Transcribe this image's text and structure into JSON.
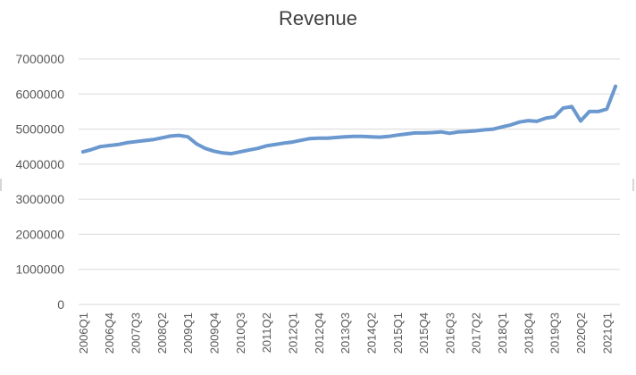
{
  "chart_data": {
    "type": "line",
    "title": "Revenue",
    "xlabel": "",
    "ylabel": "",
    "ylim": [
      0,
      7000000
    ],
    "yticks": [
      "0",
      "1000000",
      "2000000",
      "3000000",
      "4000000",
      "5000000",
      "6000000",
      "7000000"
    ],
    "grid": "horizontal",
    "legend": "none",
    "line_color": "#6a98cf",
    "categories": [
      "2006Q1",
      "2006Q2",
      "2006Q3",
      "2006Q4",
      "2007Q1",
      "2007Q2",
      "2007Q3",
      "2007Q4",
      "2008Q1",
      "2008Q2",
      "2008Q3",
      "2008Q4",
      "2009Q1",
      "2009Q2",
      "2009Q3",
      "2009Q4",
      "2010Q1",
      "2010Q2",
      "2010Q3",
      "2010Q4",
      "2011Q1",
      "2011Q2",
      "2011Q3",
      "2011Q4",
      "2012Q1",
      "2012Q2",
      "2012Q3",
      "2012Q4",
      "2013Q1",
      "2013Q2",
      "2013Q3",
      "2013Q4",
      "2014Q1",
      "2014Q2",
      "2014Q3",
      "2014Q4",
      "2015Q1",
      "2015Q2",
      "2015Q3",
      "2015Q4",
      "2016Q1",
      "2016Q2",
      "2016Q3",
      "2016Q4",
      "2017Q1",
      "2017Q2",
      "2017Q3",
      "2017Q4",
      "2018Q1",
      "2018Q2",
      "2018Q3",
      "2018Q4",
      "2019Q1",
      "2019Q2",
      "2019Q3",
      "2019Q4",
      "2020Q1",
      "2020Q2",
      "2020Q3",
      "2020Q4",
      "2021Q1",
      "2021Q2"
    ],
    "tick_labels": [
      "2006Q1",
      "2006Q4",
      "2007Q3",
      "2008Q2",
      "2009Q1",
      "2009Q4",
      "2010Q3",
      "2011Q2",
      "2012Q1",
      "2012Q4",
      "2013Q3",
      "2014Q2",
      "2015Q1",
      "2015Q4",
      "2016Q3",
      "2017Q2",
      "2018Q1",
      "2018Q4",
      "2019Q3",
      "2020Q2",
      "2021Q1"
    ],
    "series": [
      {
        "values": [
          4350000,
          4420000,
          4500000,
          4530000,
          4560000,
          4610000,
          4640000,
          4670000,
          4700000,
          4750000,
          4800000,
          4820000,
          4780000,
          4580000,
          4450000,
          4370000,
          4320000,
          4300000,
          4350000,
          4400000,
          4450000,
          4520000,
          4560000,
          4600000,
          4630000,
          4680000,
          4730000,
          4740000,
          4740000,
          4760000,
          4780000,
          4790000,
          4790000,
          4780000,
          4770000,
          4790000,
          4830000,
          4860000,
          4890000,
          4890000,
          4900000,
          4920000,
          4880000,
          4920000,
          4930000,
          4950000,
          4980000,
          5000000,
          5060000,
          5120000,
          5200000,
          5240000,
          5220000,
          5310000,
          5350000,
          5600000,
          5640000,
          5230000,
          5500000,
          5500000,
          5570000,
          6220000
        ]
      }
    ]
  }
}
